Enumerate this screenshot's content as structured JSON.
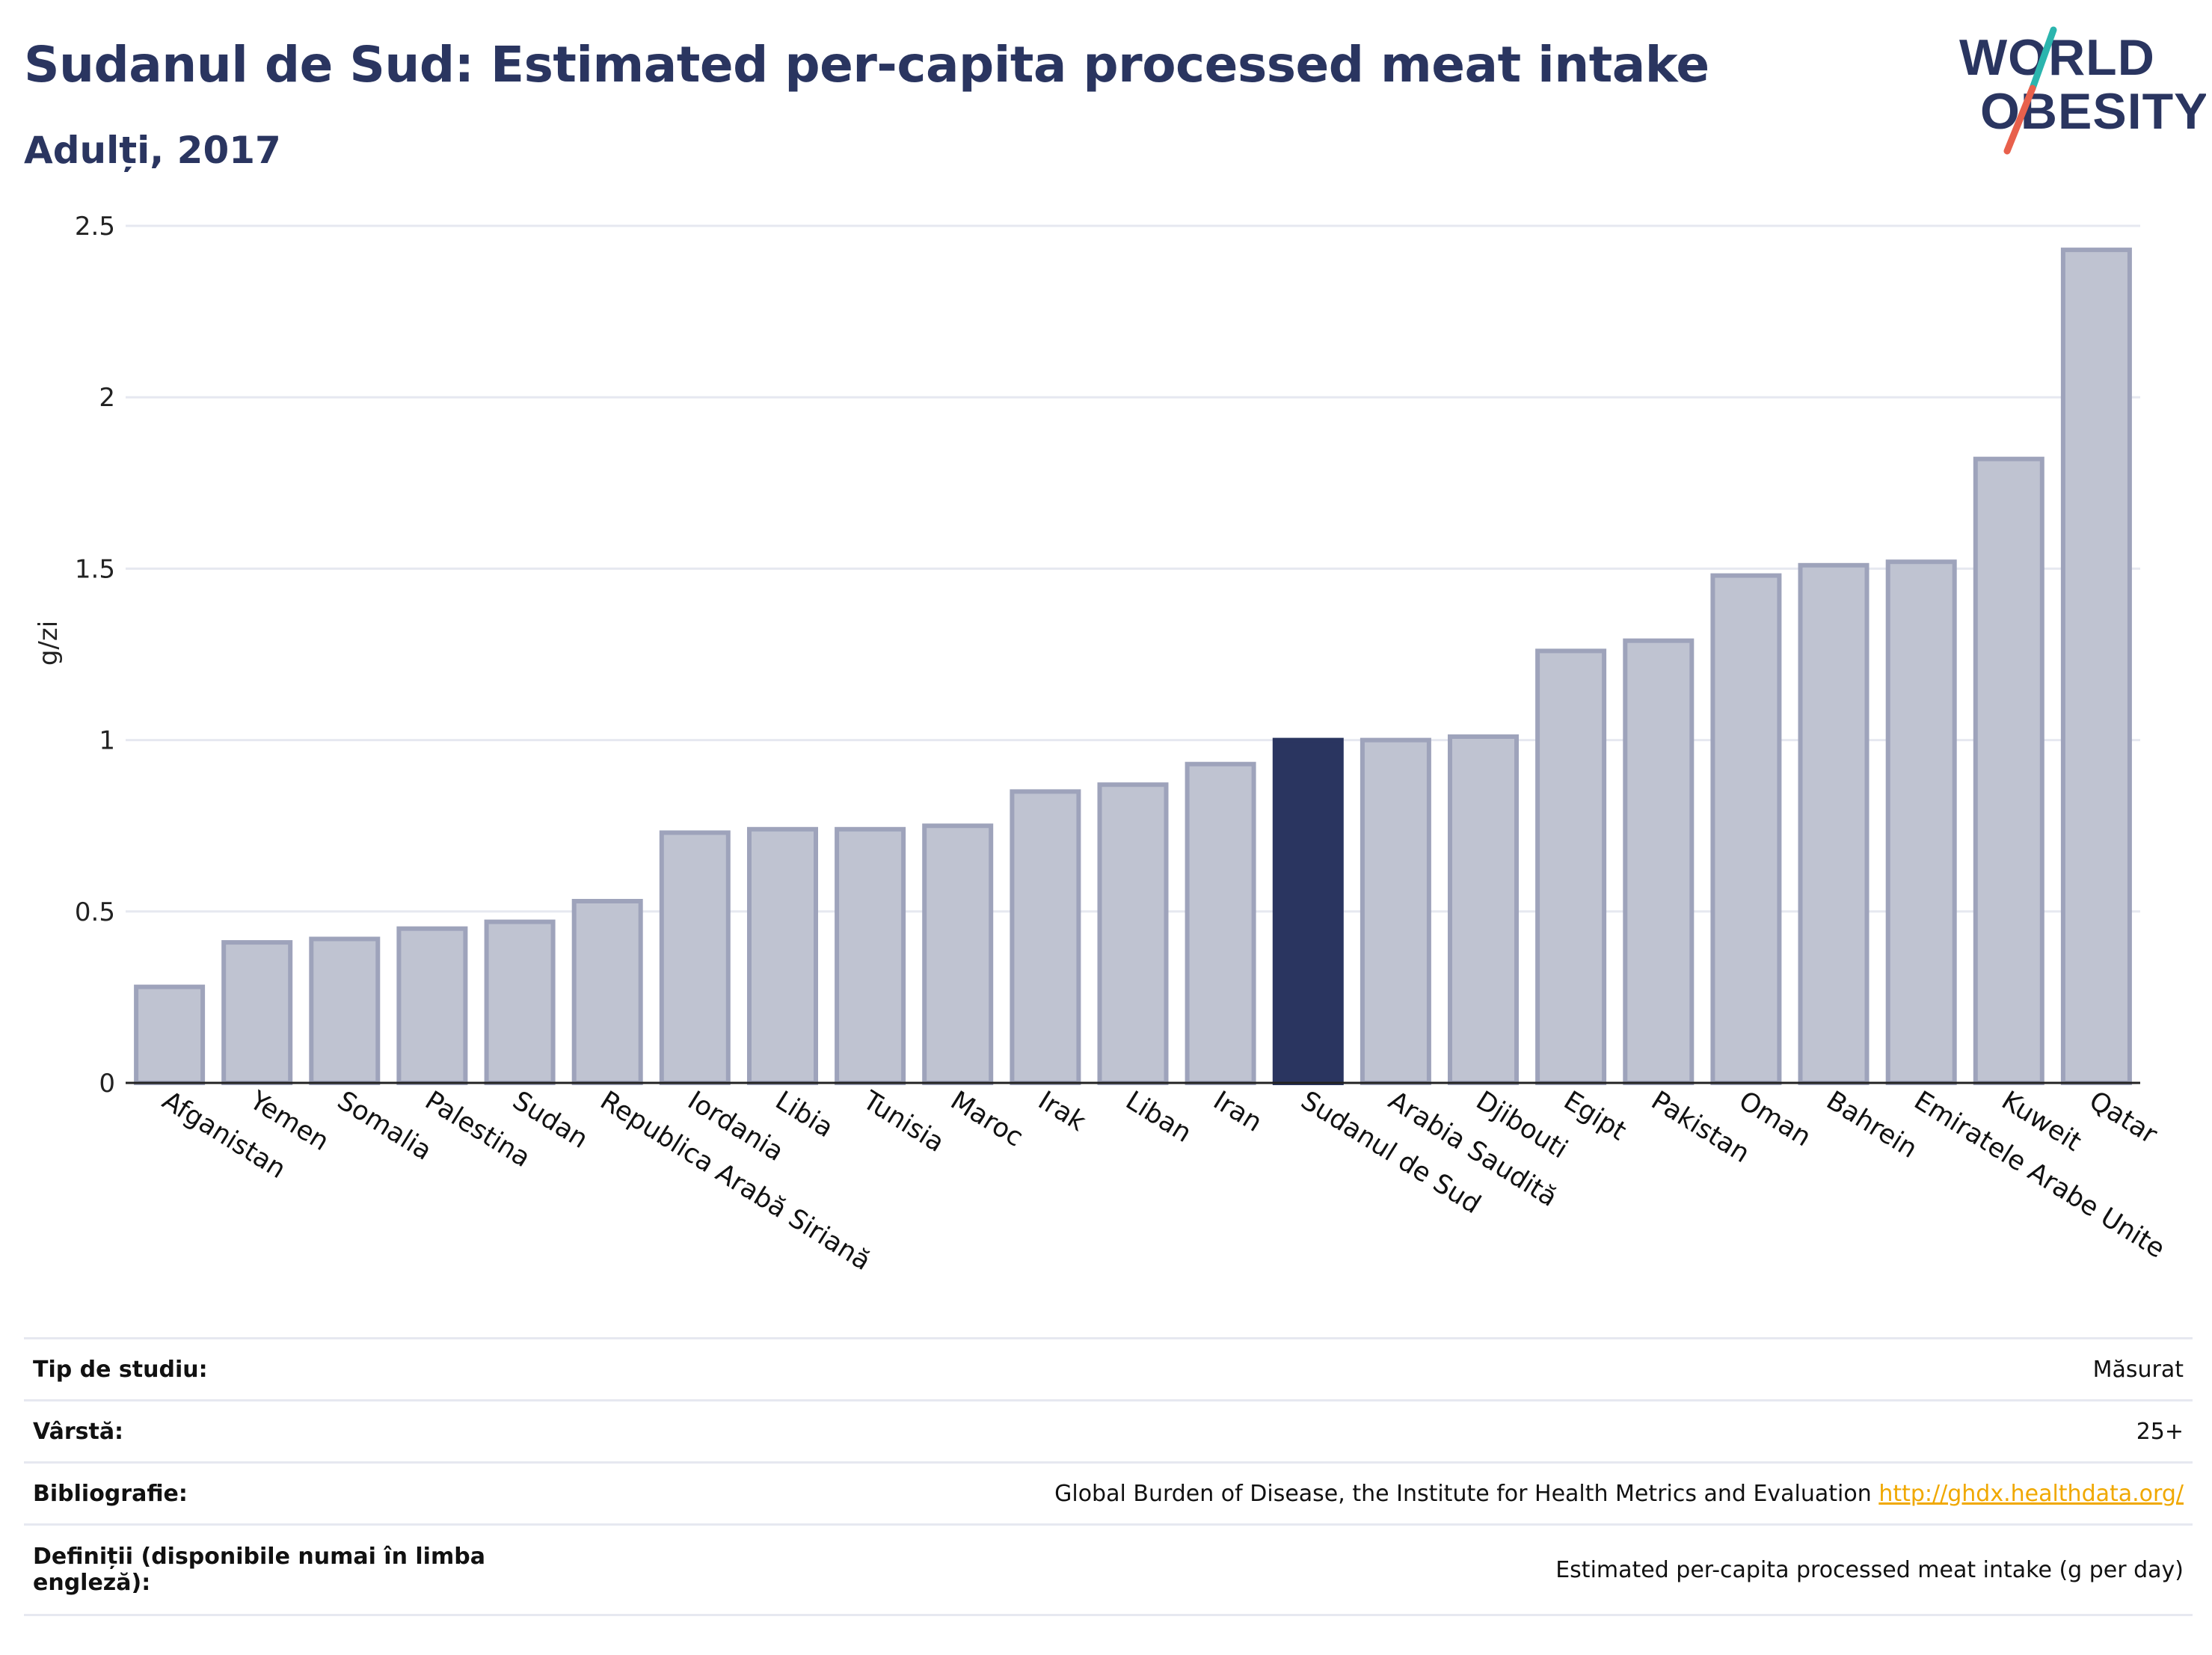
{
  "header": {
    "title": "Sudanul de Sud: Estimated per-capita processed meat intake",
    "subtitle": "Adulți, 2017"
  },
  "logo": {
    "line1": "WORLD",
    "line2": "OBESITY",
    "accent_teal": "#2bb5ae",
    "accent_red": "#e8604c",
    "text_color": "#2a3560"
  },
  "colors": {
    "bar_fill": "#bfc3d1",
    "bar_stroke": "#9ea3bb",
    "highlight_fill": "#2a3560",
    "grid": "#e6e8f0",
    "axis": "#222222"
  },
  "chart_data": {
    "type": "bar",
    "title": "Sudanul de Sud: Estimated per-capita processed meat intake",
    "subtitle": "Adulți, 2017",
    "xlabel": "",
    "ylabel": "g/zi",
    "ylim": [
      0,
      2.5
    ],
    "yticks": [
      0,
      0.5,
      1,
      1.5,
      2,
      2.5
    ],
    "ytick_labels": [
      "0",
      "0.5",
      "1",
      "1.5",
      "2",
      "2.5"
    ],
    "grid": true,
    "highlight": "Sudanul de Sud",
    "categories": [
      "Afganistan",
      "Yemen",
      "Somalia",
      "Palestina",
      "Sudan",
      "Republica Arabă Siriană",
      "Iordania",
      "Libia",
      "Tunisia",
      "Maroc",
      "Irak",
      "Liban",
      "Iran",
      "Sudanul de Sud",
      "Arabia Saudită",
      "Djibouti",
      "Egipt",
      "Pakistan",
      "Oman",
      "Bahrein",
      "Emiratele Arabe Unite",
      "Kuweit",
      "Qatar"
    ],
    "values": [
      0.28,
      0.41,
      0.42,
      0.45,
      0.47,
      0.53,
      0.73,
      0.74,
      0.74,
      0.75,
      0.85,
      0.87,
      0.93,
      1.0,
      1.0,
      1.01,
      1.26,
      1.29,
      1.48,
      1.51,
      1.52,
      1.82,
      2.43
    ]
  },
  "info": {
    "rows": [
      {
        "label": "Tip de studiu:",
        "value": "Măsurat"
      },
      {
        "label": "Vârstă:",
        "value": "25+"
      },
      {
        "label": "Bibliografie:",
        "value": "Global Burden of Disease, the Institute for Health Metrics and Evaluation",
        "link": "http://ghdx.healthdata.org/"
      },
      {
        "label": "Definiții (disponibile numai în limba engleză):",
        "value": "Estimated per-capita processed meat intake (g per day)"
      }
    ]
  }
}
